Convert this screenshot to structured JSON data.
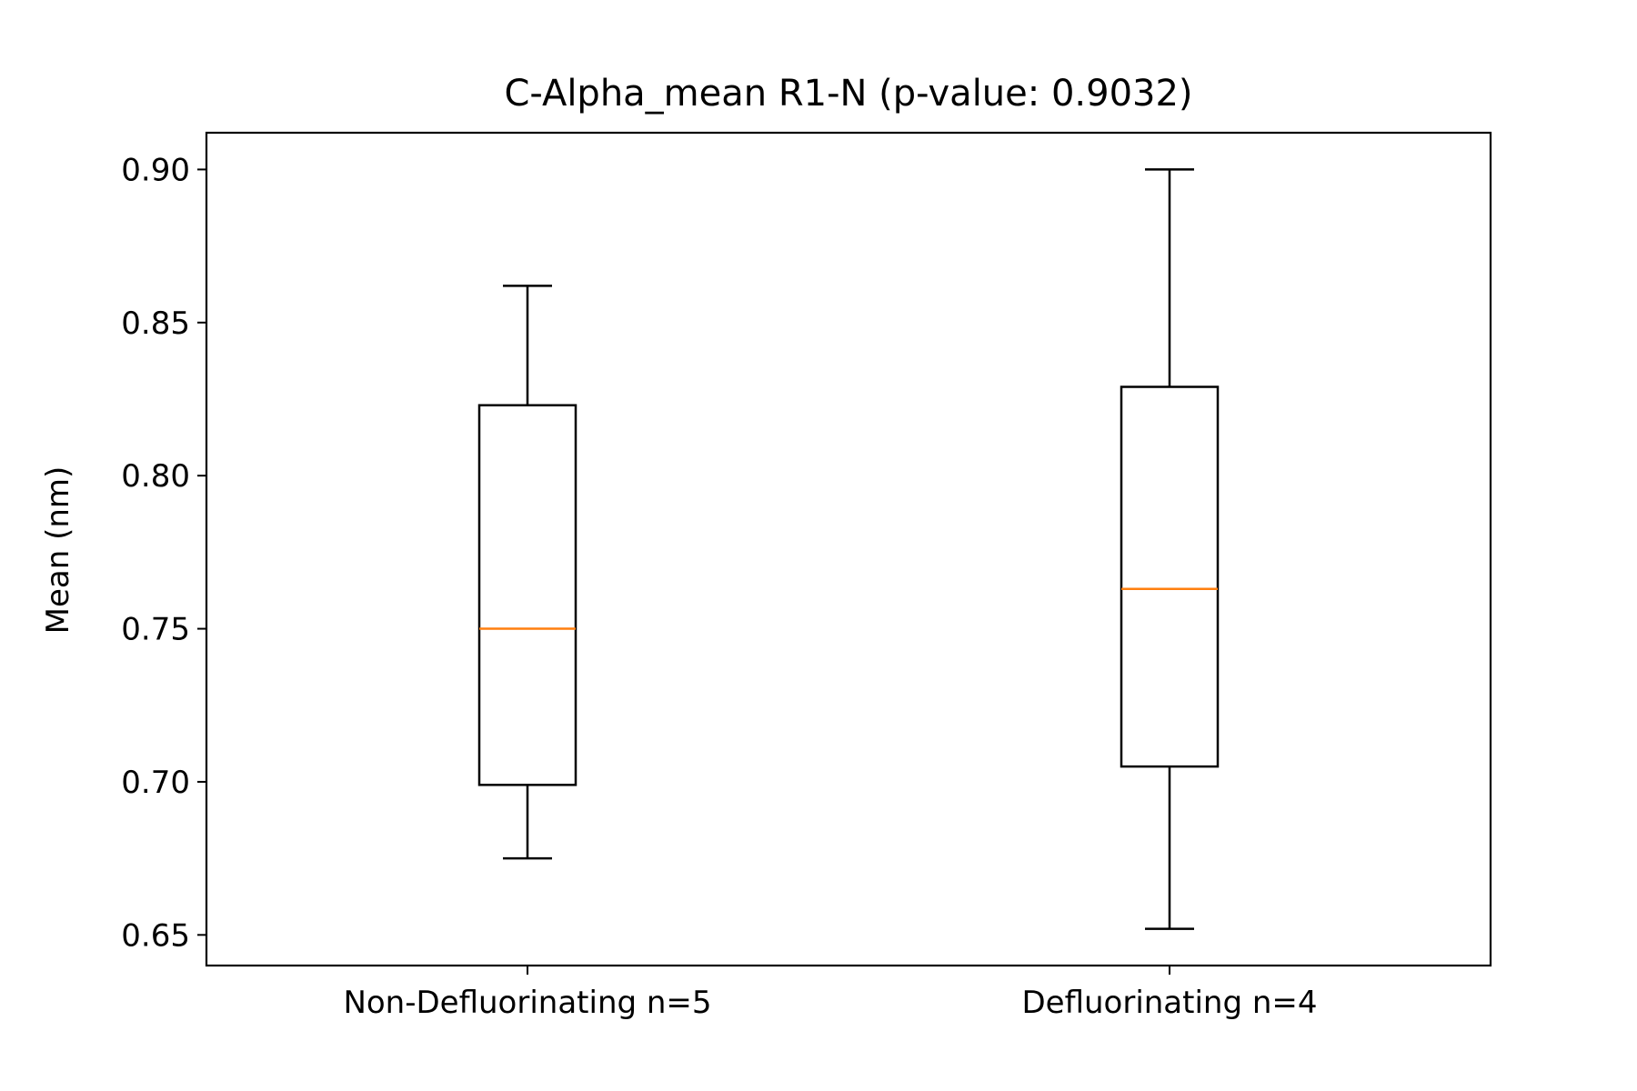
{
  "chart_data": {
    "type": "boxplot",
    "title": "C-Alpha_mean R1-N (p-value: 0.9032)",
    "xlabel": "",
    "ylabel": "Mean (nm)",
    "ylim": [
      0.64,
      0.912
    ],
    "yticks": [
      0.65,
      0.7,
      0.75,
      0.8,
      0.85,
      0.9
    ],
    "ytick_labels": [
      "0.65",
      "0.70",
      "0.75",
      "0.80",
      "0.85",
      "0.90"
    ],
    "grid": false,
    "colors": {
      "box": "#000000",
      "median": "#ff7f0e",
      "frame": "#000000"
    },
    "categories": [
      "Non-Defluorinating n=5",
      "Defluorinating n=4"
    ],
    "boxes": [
      {
        "category": "Non-Defluorinating n=5",
        "whisker_low": 0.675,
        "q1": 0.699,
        "median": 0.75,
        "q3": 0.823,
        "whisker_high": 0.862
      },
      {
        "category": "Defluorinating n=4",
        "whisker_low": 0.652,
        "q1": 0.705,
        "median": 0.763,
        "q3": 0.829,
        "whisker_high": 0.9
      }
    ]
  }
}
